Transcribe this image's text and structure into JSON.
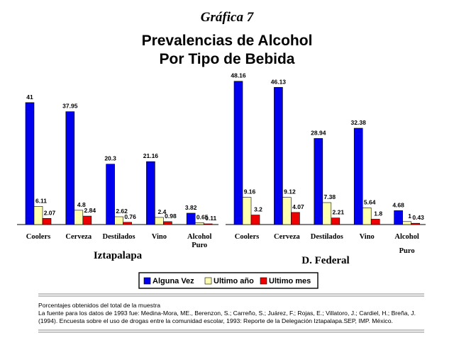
{
  "header": {
    "kicker": "Gráfica 7",
    "title_line1": "Prevalencias de Alcohol",
    "title_line2": "Por Tipo de Bebida"
  },
  "chart_data": {
    "type": "bar",
    "title": "Prevalencias de Alcohol Por Tipo de Bebida",
    "ylim": [
      0,
      50
    ],
    "grid": false,
    "legend_position": "bottom",
    "groups": [
      {
        "name": "Iztapalapa",
        "categories": [
          "Coolers",
          "Cerveza",
          "Destilados",
          "Vino",
          "Alcohol Puro"
        ],
        "series": [
          {
            "name": "Alguna Vez",
            "values": [
              41,
              37.95,
              20.3,
              21.16,
              3.82
            ]
          },
          {
            "name": "Ultimo año",
            "values": [
              6.11,
              4.8,
              2.62,
              2.4,
              0.65
            ]
          },
          {
            "name": "Ultimo mes",
            "values": [
              2.07,
              2.84,
              0.76,
              0.98,
              0.11
            ]
          }
        ]
      },
      {
        "name": "D. Federal",
        "categories": [
          "Coolers",
          "Cerveza",
          "Destilados",
          "Vino",
          "Alcohol Puro"
        ],
        "series": [
          {
            "name": "Alguna Vez",
            "values": [
              48.16,
              46.13,
              28.94,
              32.38,
              4.68
            ]
          },
          {
            "name": "Ultimo año",
            "values": [
              9.16,
              9.12,
              7.38,
              5.64,
              1
            ]
          },
          {
            "name": "Ultimo mes",
            "values": [
              3.2,
              4.07,
              2.21,
              1.8,
              0.43
            ]
          }
        ]
      }
    ],
    "series_colors": [
      "#0000ee",
      "#ffffb0",
      "#ee0000"
    ],
    "legend": [
      "Alguna Vez",
      "Ultimo año",
      "Ultimo mes"
    ]
  },
  "footer": {
    "line1": "Porcentajes obtenidos del total de la muestra",
    "line2": "La fuente para los datos de 1993 fue: Medina-Mora, ME., Berenzon, S.; Carreño, S.; Juárez, F.; Rojas, E.; Villatoro, J.; Cardiel, H.; Breña, J.",
    "line3": "(1994). Encuesta sobre el uso de drogas entre la comunidad escolar, 1993: Reporte de la Delegación Iztapalapa.SEP, IMP. México."
  }
}
